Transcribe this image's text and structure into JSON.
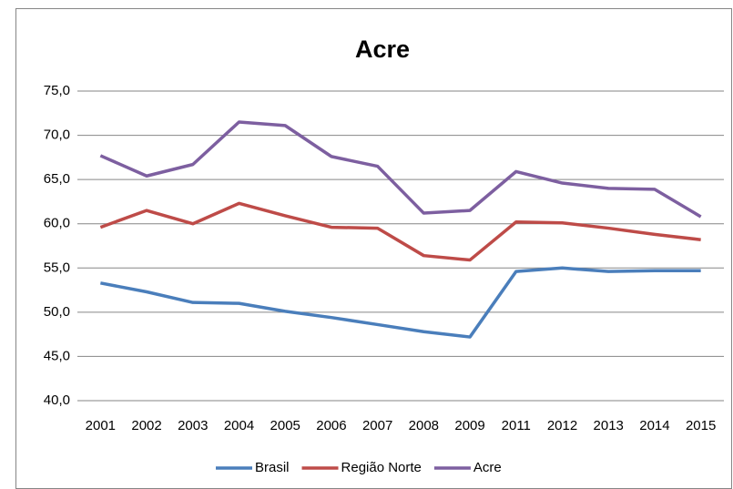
{
  "chart_data": {
    "type": "line",
    "title": "Acre",
    "categories": [
      "2001",
      "2002",
      "2003",
      "2004",
      "2005",
      "2006",
      "2007",
      "2008",
      "2009",
      "2011",
      "2012",
      "2013",
      "2014",
      "2015"
    ],
    "series": [
      {
        "name": "Brasil",
        "color": "#4a7ebb",
        "values": [
          53.3,
          52.3,
          51.1,
          51.0,
          50.1,
          49.4,
          48.6,
          47.8,
          47.2,
          54.6,
          55.0,
          54.6,
          54.7,
          54.7
        ]
      },
      {
        "name": "Região Norte",
        "color": "#be4b48",
        "values": [
          59.6,
          61.5,
          60.0,
          62.3,
          60.9,
          59.6,
          59.5,
          56.4,
          55.9,
          60.2,
          60.1,
          59.5,
          58.8,
          58.2
        ]
      },
      {
        "name": "Acre",
        "color": "#7d5fa0",
        "values": [
          67.7,
          65.4,
          66.7,
          71.5,
          71.1,
          67.6,
          66.5,
          61.2,
          61.5,
          65.9,
          64.6,
          64.0,
          63.9,
          60.8
        ]
      }
    ],
    "ylim": [
      40,
      75
    ],
    "yticks": [
      {
        "value": 40,
        "label": "40,0"
      },
      {
        "value": 45,
        "label": "45,0"
      },
      {
        "value": 50,
        "label": "50,0"
      },
      {
        "value": 55,
        "label": "55,0"
      },
      {
        "value": 60,
        "label": "60,0"
      },
      {
        "value": 65,
        "label": "65,0"
      },
      {
        "value": 70,
        "label": "70,0"
      },
      {
        "value": 75,
        "label": "75,0"
      }
    ],
    "grid": true,
    "legend": "bottom"
  }
}
